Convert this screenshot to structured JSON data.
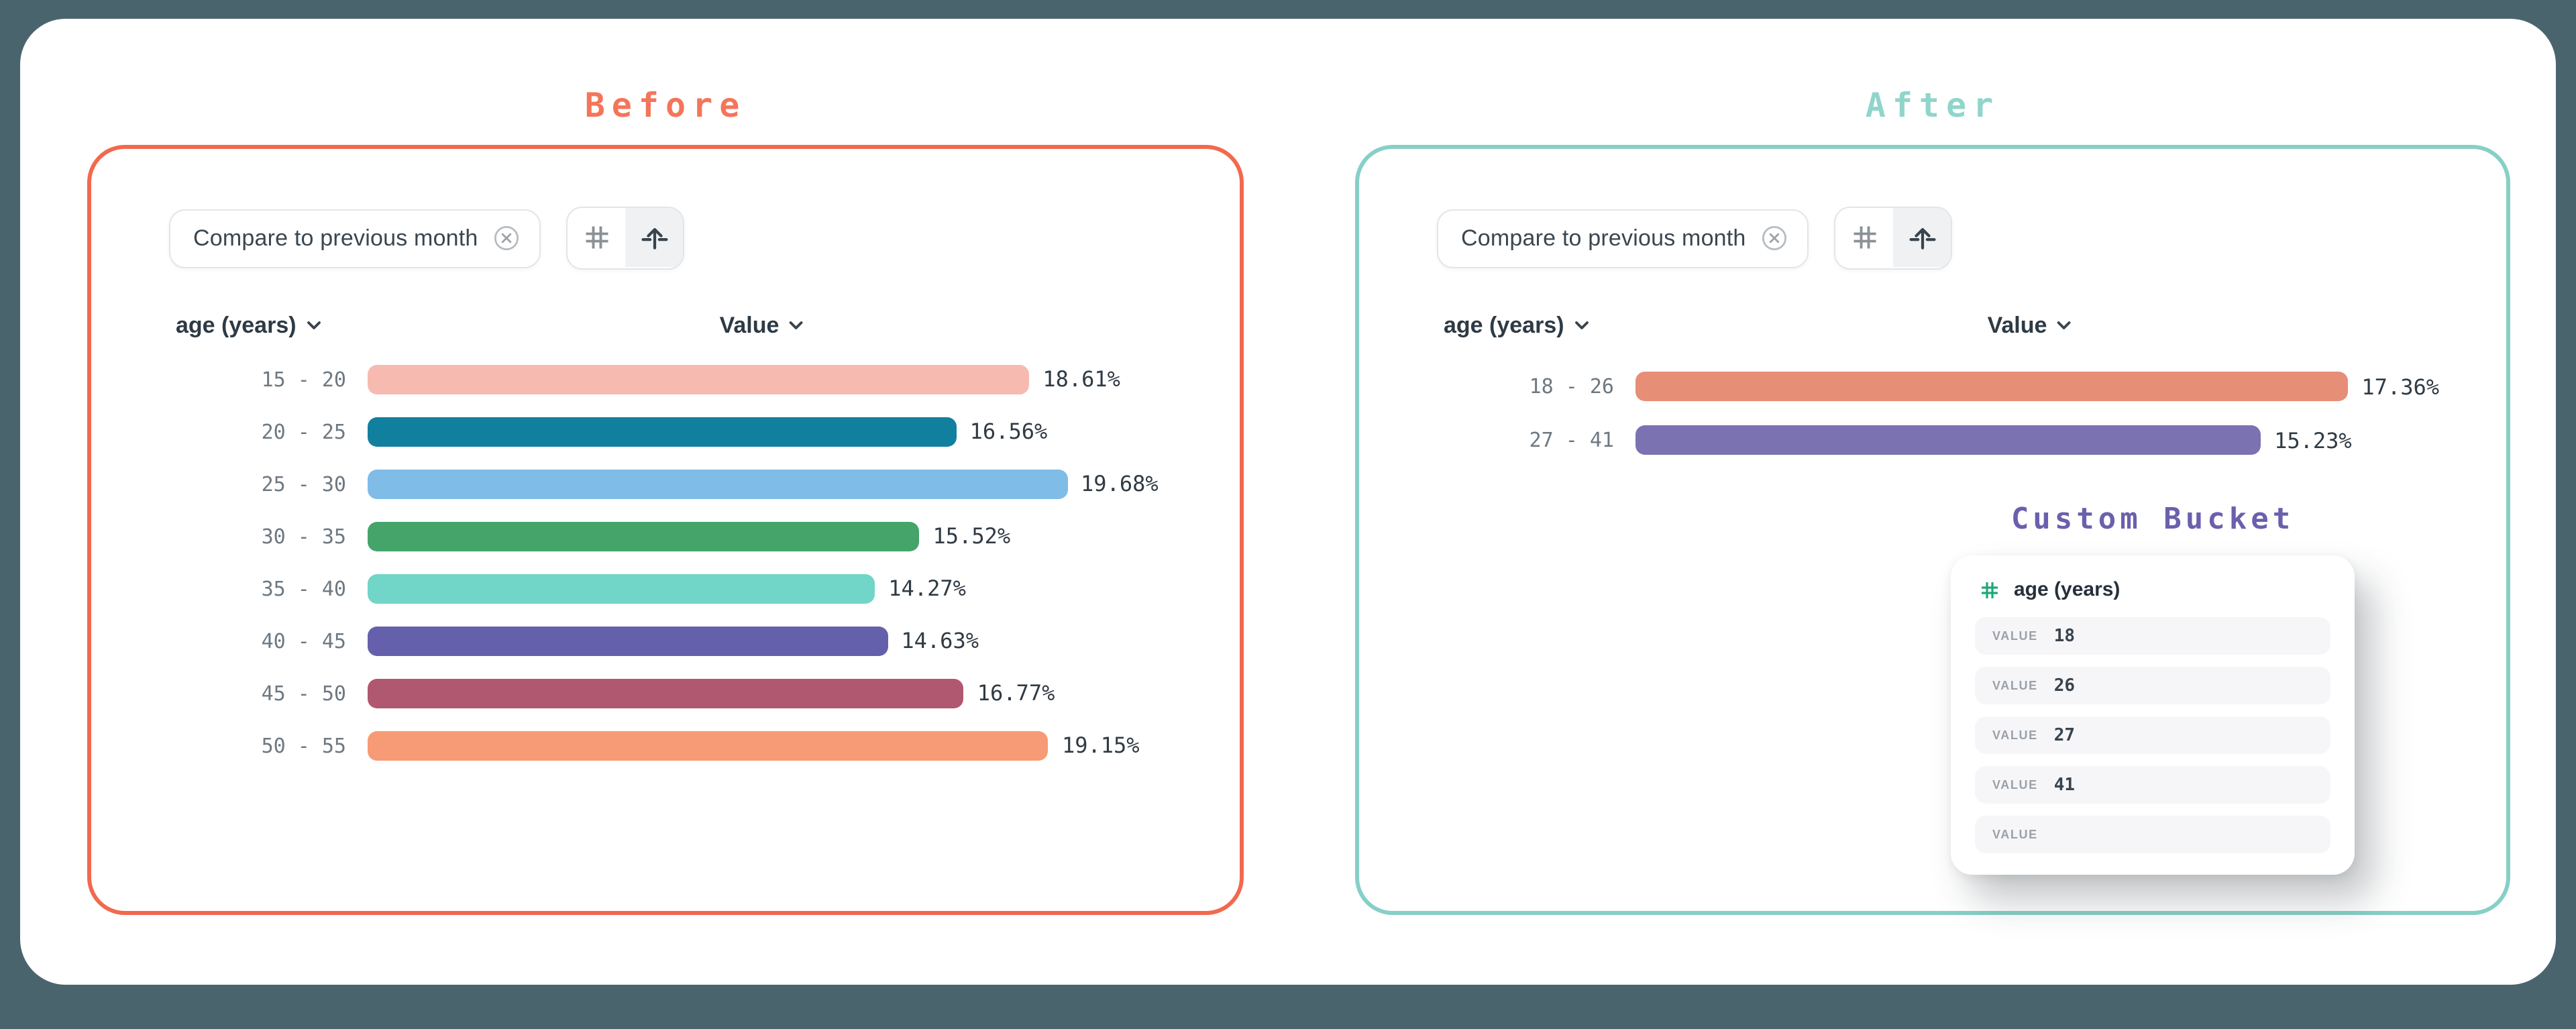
{
  "background_color": "#4A646E",
  "panels": [
    {
      "title": "Before",
      "accent_color": "#F2694E",
      "title_color": "#F4755A",
      "filter_chip": {
        "label": "Compare to previous month"
      },
      "toolbar": {
        "icons": [
          "hash-icon",
          "axis-arrow-icon"
        ],
        "selected_icon": "axis-arrow-icon"
      }
    },
    {
      "title": "After",
      "accent_color": "#87CFC7",
      "title_color": "#90D5CB",
      "filter_chip": {
        "label": "Compare to previous month"
      },
      "toolbar": {
        "icons": [
          "hash-icon",
          "axis-arrow-icon"
        ],
        "selected_icon": "axis-arrow-icon"
      },
      "custom_bucket": {
        "title": "Custom Bucket",
        "title_color": "#6A60AD",
        "field_icon": "hash-icon",
        "field_icon_color": "#1EA878",
        "field_label": "age (years)",
        "rows": [
          {
            "label": "VALUE",
            "value": "18"
          },
          {
            "label": "VALUE",
            "value": "26"
          },
          {
            "label": "VALUE",
            "value": "27"
          },
          {
            "label": "VALUE",
            "value": "41"
          },
          {
            "label": "VALUE",
            "value": ""
          }
        ]
      }
    }
  ],
  "chart_data": [
    {
      "type": "bar",
      "orientation": "horizontal",
      "title": "Before",
      "column_headers": [
        "age (years)",
        "Value"
      ],
      "categories": [
        "15 - 20",
        "20 - 25",
        "25 - 30",
        "30 - 35",
        "35 - 40",
        "40 - 45",
        "45 - 50",
        "50 - 55"
      ],
      "values": [
        18.61,
        16.56,
        19.68,
        15.52,
        14.27,
        14.63,
        16.77,
        19.15
      ],
      "value_format": "percent",
      "bar_colors": [
        "#F7BAB0",
        "#11809F",
        "#7FBCE8",
        "#44A469",
        "#71D5C8",
        "#6560AB",
        "#B05870",
        "#F79B77"
      ]
    },
    {
      "type": "bar",
      "orientation": "horizontal",
      "title": "After",
      "column_headers": [
        "age (years)",
        "Value"
      ],
      "categories": [
        "18 - 26",
        "27 - 41"
      ],
      "values": [
        17.36,
        15.23
      ],
      "value_format": "percent",
      "bar_colors": [
        "#E78E77",
        "#7B72B2"
      ]
    }
  ]
}
